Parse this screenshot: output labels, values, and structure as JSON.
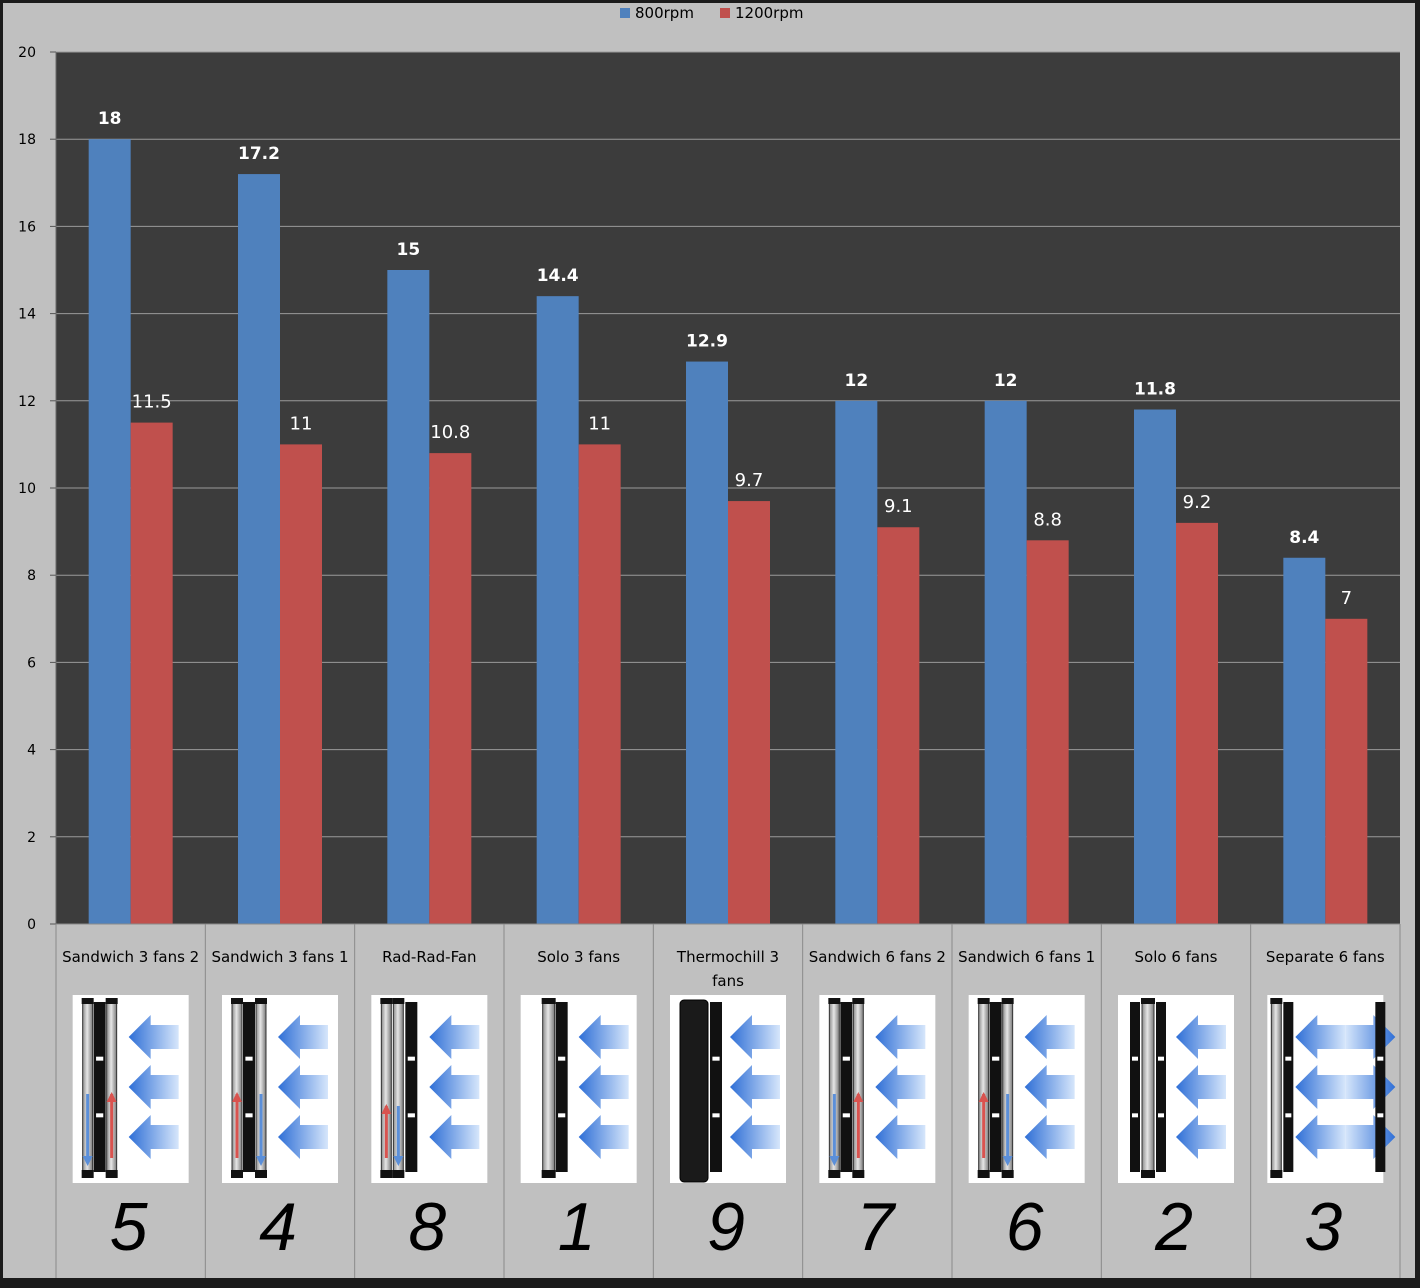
{
  "chart_data": {
    "type": "bar",
    "categories": [
      "Sandwich 3 fans 2",
      "Sandwich 3 fans 1",
      "Rad-Rad-Fan",
      "Solo 3 fans",
      "Thermochill 3 fans",
      "Sandwich 6 fans 2",
      "Sandwich 6 fans 1",
      "Solo 6 fans",
      "Separate 6 fans"
    ],
    "ranks": [
      "5",
      "4",
      "8",
      "1",
      "9",
      "7",
      "6",
      "2",
      "3"
    ],
    "layouts": [
      "sandwich-down-up",
      "sandwich-up-down",
      "rad-rad-fan",
      "solo",
      "thermochill",
      "sandwich-down-up",
      "sandwich-up-down",
      "solo-black",
      "separate"
    ],
    "series": [
      {
        "name": "800rpm",
        "color": "#4f81bd",
        "values": [
          18,
          17.2,
          15,
          14.4,
          12.9,
          12,
          12,
          11.8,
          8.4
        ]
      },
      {
        "name": "1200rpm",
        "color": "#c0504d",
        "values": [
          11.5,
          11,
          10.8,
          11,
          9.7,
          9.1,
          8.8,
          9.2,
          7
        ]
      }
    ],
    "data_labels": [
      [
        "18",
        "17.2",
        "15",
        "14.4",
        "12.9",
        "12",
        "12",
        "11.8",
        "8.4"
      ],
      [
        "11.5",
        "11",
        "10.8",
        "11",
        "9.7",
        "9.1",
        "8.8",
        "9.2",
        "7"
      ]
    ],
    "ylim": [
      0,
      20
    ],
    "yticks": [
      0,
      2,
      4,
      6,
      8,
      10,
      12,
      14,
      16,
      18,
      20
    ],
    "grid": true,
    "legend": "top-center",
    "plot_background": "#3c3c3c",
    "chart_background": "#c0c0c0",
    "title": "",
    "xlabel": "",
    "ylabel": ""
  }
}
